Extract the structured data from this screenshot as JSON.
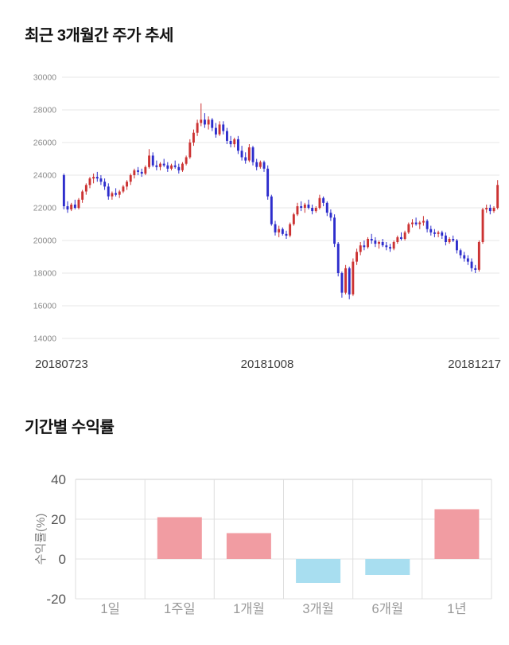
{
  "price_section_title": "최근 3개월간 주가 추세",
  "returns_section_title": "기간별 수익률",
  "chart_data": [
    {
      "type": "candlestick",
      "title": "최근 3개월간 주가 추세",
      "x_labels": [
        "20180723",
        "20181008",
        "20181217"
      ],
      "ylim": [
        14000,
        30000
      ],
      "y_tick_step": 2000,
      "y_ticks": [
        30000,
        28000,
        26000,
        24000,
        22000,
        20000,
        18000,
        16000,
        14000
      ],
      "up_color": "#cc3333",
      "down_color": "#2d2dcc",
      "grid": true,
      "ohlc": [
        [
          24000,
          24100,
          21900,
          22100
        ],
        [
          22100,
          22400,
          21700,
          21900
        ],
        [
          21900,
          22300,
          21800,
          22200
        ],
        [
          22200,
          22500,
          21900,
          22000
        ],
        [
          22000,
          22600,
          21900,
          22500
        ],
        [
          22500,
          23100,
          22300,
          23000
        ],
        [
          23000,
          23500,
          22800,
          23400
        ],
        [
          23400,
          23900,
          23200,
          23800
        ],
        [
          23800,
          24100,
          23500,
          23900
        ],
        [
          23900,
          24200,
          23600,
          23800
        ],
        [
          23800,
          24000,
          23400,
          23600
        ],
        [
          23600,
          23800,
          23100,
          23300
        ],
        [
          23300,
          23500,
          22500,
          22700
        ],
        [
          22700,
          23000,
          22500,
          22900
        ],
        [
          22900,
          23200,
          22700,
          22800
        ],
        [
          22800,
          23100,
          22600,
          23000
        ],
        [
          23000,
          23400,
          22900,
          23300
        ],
        [
          23300,
          23700,
          23100,
          23600
        ],
        [
          23600,
          24100,
          23400,
          24000
        ],
        [
          24000,
          24400,
          23800,
          24300
        ],
        [
          24300,
          24500,
          24000,
          24200
        ],
        [
          24200,
          24400,
          23900,
          24100
        ],
        [
          24100,
          24600,
          24000,
          24500
        ],
        [
          24500,
          25600,
          24400,
          25200
        ],
        [
          25200,
          25400,
          24500,
          24600
        ],
        [
          24600,
          24900,
          24300,
          24500
        ],
        [
          24500,
          24800,
          24300,
          24700
        ],
        [
          24700,
          25000,
          24500,
          24600
        ],
        [
          24600,
          24800,
          24200,
          24400
        ],
        [
          24400,
          24700,
          24300,
          24600
        ],
        [
          24600,
          24900,
          24400,
          24500
        ],
        [
          24500,
          24700,
          24100,
          24300
        ],
        [
          24300,
          24800,
          24200,
          24700
        ],
        [
          24700,
          25200,
          24600,
          25100
        ],
        [
          25100,
          26200,
          25000,
          26000
        ],
        [
          26000,
          26800,
          25800,
          26600
        ],
        [
          26600,
          27400,
          26400,
          27200
        ],
        [
          27200,
          28400,
          27000,
          27400
        ],
        [
          27400,
          27800,
          26900,
          27100
        ],
        [
          27100,
          27600,
          26800,
          27400
        ],
        [
          27400,
          27500,
          26700,
          26900
        ],
        [
          26900,
          27200,
          26300,
          26500
        ],
        [
          26500,
          27300,
          26400,
          27100
        ],
        [
          27100,
          27300,
          26500,
          26700
        ],
        [
          26700,
          26900,
          25900,
          26100
        ],
        [
          26100,
          26400,
          25700,
          25900
        ],
        [
          25900,
          26300,
          25700,
          26200
        ],
        [
          26200,
          26400,
          25300,
          25500
        ],
        [
          25500,
          25800,
          24900,
          25100
        ],
        [
          25100,
          25400,
          24700,
          24900
        ],
        [
          24900,
          25900,
          24800,
          25700
        ],
        [
          25700,
          25800,
          24600,
          24800
        ],
        [
          24800,
          25000,
          24300,
          24500
        ],
        [
          24500,
          24900,
          24400,
          24800
        ],
        [
          24800,
          24900,
          24200,
          24400
        ],
        [
          24400,
          24600,
          22500,
          22700
        ],
        [
          22700,
          22800,
          20900,
          21000
        ],
        [
          21000,
          21200,
          20300,
          20500
        ],
        [
          20500,
          20900,
          20200,
          20700
        ],
        [
          20700,
          20800,
          20300,
          20400
        ],
        [
          20400,
          20600,
          20100,
          20300
        ],
        [
          20300,
          21100,
          20200,
          21000
        ],
        [
          21000,
          21700,
          20900,
          21600
        ],
        [
          21600,
          22300,
          21500,
          22100
        ],
        [
          22100,
          22400,
          21800,
          22000
        ],
        [
          22000,
          22300,
          21700,
          22200
        ],
        [
          22200,
          22500,
          21900,
          22000
        ],
        [
          22000,
          22200,
          21600,
          21800
        ],
        [
          21800,
          22100,
          21700,
          22000
        ],
        [
          22000,
          22800,
          21900,
          22600
        ],
        [
          22600,
          22700,
          22100,
          22300
        ],
        [
          22300,
          22400,
          21500,
          21700
        ],
        [
          21700,
          21900,
          21200,
          21400
        ],
        [
          21400,
          21600,
          19600,
          19800
        ],
        [
          19800,
          19900,
          17800,
          18000
        ],
        [
          18000,
          18100,
          16500,
          16800
        ],
        [
          16800,
          18500,
          16700,
          18300
        ],
        [
          18300,
          18400,
          16400,
          16700
        ],
        [
          16700,
          18900,
          16600,
          18700
        ],
        [
          18700,
          19500,
          18500,
          19300
        ],
        [
          19300,
          19900,
          19100,
          19700
        ],
        [
          19700,
          20000,
          19400,
          19600
        ],
        [
          19600,
          20200,
          19500,
          20100
        ],
        [
          20100,
          20400,
          19800,
          20000
        ],
        [
          20000,
          20200,
          19600,
          19800
        ],
        [
          19800,
          20000,
          19500,
          19900
        ],
        [
          19900,
          20100,
          19600,
          19700
        ],
        [
          19700,
          19900,
          19400,
          19600
        ],
        [
          19600,
          19800,
          19300,
          19500
        ],
        [
          19500,
          20000,
          19400,
          19900
        ],
        [
          19900,
          20300,
          19800,
          20200
        ],
        [
          20200,
          20500,
          20000,
          20100
        ],
        [
          20100,
          20600,
          20000,
          20500
        ],
        [
          20500,
          21100,
          20400,
          21000
        ],
        [
          21000,
          21300,
          20800,
          21100
        ],
        [
          21100,
          21400,
          20900,
          21000
        ],
        [
          21000,
          21200,
          20700,
          21100
        ],
        [
          21100,
          21500,
          20900,
          21200
        ],
        [
          21200,
          21300,
          20500,
          20700
        ],
        [
          20700,
          20900,
          20300,
          20500
        ],
        [
          20500,
          20700,
          20200,
          20400
        ],
        [
          20400,
          20600,
          20200,
          20500
        ],
        [
          20500,
          20600,
          20100,
          20300
        ],
        [
          20300,
          20500,
          19700,
          19900
        ],
        [
          19900,
          20200,
          19800,
          20100
        ],
        [
          20100,
          20300,
          19900,
          20000
        ],
        [
          20000,
          20100,
          19200,
          19400
        ],
        [
          19400,
          19500,
          18900,
          19100
        ],
        [
          19100,
          19300,
          18700,
          18900
        ],
        [
          18900,
          19100,
          18500,
          18700
        ],
        [
          18700,
          18900,
          18100,
          18300
        ],
        [
          18300,
          18500,
          18000,
          18200
        ],
        [
          18200,
          20000,
          18100,
          19900
        ],
        [
          19900,
          22000,
          19800,
          21900
        ],
        [
          21900,
          22200,
          21700,
          22000
        ],
        [
          22000,
          22200,
          21600,
          21800
        ],
        [
          21800,
          22100,
          21700,
          22000
        ],
        [
          22000,
          23700,
          21900,
          23400
        ]
      ]
    },
    {
      "type": "bar",
      "title": "기간별 수익률",
      "ylabel": "수익률(%)",
      "categories": [
        "1일",
        "1주일",
        "1개월",
        "3개월",
        "6개월",
        "1년"
      ],
      "values": [
        0,
        21,
        13,
        -12,
        -8,
        25
      ],
      "ylim": [
        -20,
        40
      ],
      "y_ticks": [
        40,
        20,
        0,
        -20
      ],
      "positive_color": "#f19ca2",
      "negative_color": "#a8def0",
      "grid": true,
      "legend": "none"
    }
  ]
}
